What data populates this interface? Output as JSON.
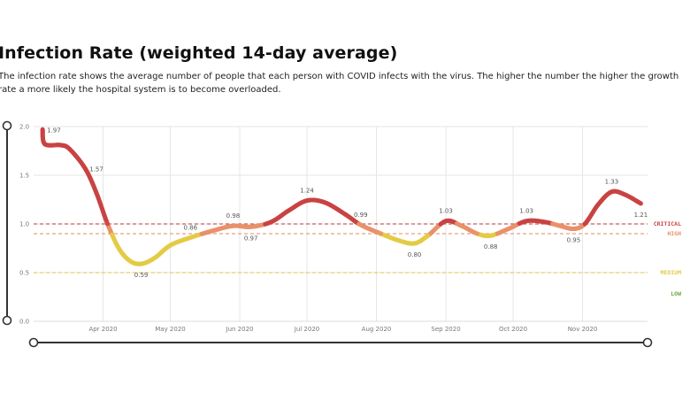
{
  "header": {
    "title": "Infection Rate (weighted 14-day average)",
    "description": "The infection rate shows the average number of people that each person with COVID infects with the virus. The higher the number the higher the growth rate a more likely the hospital system is to become overloaded."
  },
  "colors": {
    "critical": "#c94343",
    "high": "#e8916a",
    "medium": "#e3cb45",
    "low": "#6aaa3a",
    "grid": "#e6e6e6",
    "slider": "#333333"
  },
  "chart_data": {
    "type": "line",
    "title": "",
    "xlabel": "",
    "ylabel": "",
    "ylim": [
      0,
      2.0
    ],
    "x_range": [
      "2020-03-01",
      "2020-11-30"
    ],
    "grid": true,
    "y_ticks": [
      "0.0",
      "0.5",
      "1.0",
      "1.5",
      "2.0"
    ],
    "x_ticks": [
      {
        "date": "2020-04-01",
        "label": "Apr 2020"
      },
      {
        "date": "2020-05-01",
        "label": "May 2020"
      },
      {
        "date": "2020-06-01",
        "label": "Jun 2020"
      },
      {
        "date": "2020-07-01",
        "label": "Jul 2020"
      },
      {
        "date": "2020-08-01",
        "label": "Aug 2020"
      },
      {
        "date": "2020-09-01",
        "label": "Sep 2020"
      },
      {
        "date": "2020-10-01",
        "label": "Oct 2020"
      },
      {
        "date": "2020-11-01",
        "label": "Nov 2020"
      }
    ],
    "series": [
      {
        "points": [
          [
            "2020-03-05",
            1.97
          ],
          [
            "2020-03-06",
            1.82
          ],
          [
            "2020-03-13",
            1.81
          ],
          [
            "2020-03-17",
            1.77
          ],
          [
            "2020-03-24",
            1.57
          ],
          [
            "2020-03-29",
            1.32
          ],
          [
            "2020-04-03",
            1.0
          ],
          [
            "2020-04-08",
            0.75
          ],
          [
            "2020-04-13",
            0.62
          ],
          [
            "2020-04-18",
            0.59
          ],
          [
            "2020-04-24",
            0.65
          ],
          [
            "2020-05-01",
            0.78
          ],
          [
            "2020-05-10",
            0.86
          ],
          [
            "2020-05-20",
            0.93
          ],
          [
            "2020-05-29",
            0.98
          ],
          [
            "2020-06-06",
            0.97
          ],
          [
            "2020-06-15",
            1.02
          ],
          [
            "2020-06-23",
            1.14
          ],
          [
            "2020-07-01",
            1.24
          ],
          [
            "2020-07-09",
            1.22
          ],
          [
            "2020-07-18",
            1.1
          ],
          [
            "2020-07-25",
            0.99
          ],
          [
            "2020-08-03",
            0.9
          ],
          [
            "2020-08-11",
            0.83
          ],
          [
            "2020-08-18",
            0.8
          ],
          [
            "2020-08-24",
            0.88
          ],
          [
            "2020-09-01",
            1.03
          ],
          [
            "2020-09-08",
            0.98
          ],
          [
            "2020-09-15",
            0.9
          ],
          [
            "2020-09-21",
            0.88
          ],
          [
            "2020-09-29",
            0.95
          ],
          [
            "2020-10-07",
            1.03
          ],
          [
            "2020-10-15",
            1.02
          ],
          [
            "2020-10-22",
            0.98
          ],
          [
            "2020-10-28",
            0.95
          ],
          [
            "2020-11-02",
            1.0
          ],
          [
            "2020-11-08",
            1.2
          ],
          [
            "2020-11-14",
            1.33
          ],
          [
            "2020-11-20",
            1.3
          ],
          [
            "2020-11-27",
            1.21
          ]
        ]
      }
    ],
    "data_labels": [
      {
        "date": "2020-03-05",
        "value": 1.97,
        "text": "1.97",
        "pos": "right"
      },
      {
        "date": "2020-03-24",
        "value": 1.57,
        "text": "1.57",
        "pos": "right"
      },
      {
        "date": "2020-04-18",
        "value": 0.59,
        "text": "0.59",
        "pos": "below"
      },
      {
        "date": "2020-05-10",
        "value": 0.86,
        "text": "0.86",
        "pos": "above"
      },
      {
        "date": "2020-05-29",
        "value": 0.98,
        "text": "0.98",
        "pos": "above"
      },
      {
        "date": "2020-06-06",
        "value": 0.97,
        "text": "0.97",
        "pos": "below"
      },
      {
        "date": "2020-07-01",
        "value": 1.24,
        "text": "1.24",
        "pos": "above"
      },
      {
        "date": "2020-07-25",
        "value": 0.99,
        "text": "0.99",
        "pos": "above"
      },
      {
        "date": "2020-08-18",
        "value": 0.8,
        "text": "0.80",
        "pos": "below"
      },
      {
        "date": "2020-09-01",
        "value": 1.03,
        "text": "1.03",
        "pos": "above"
      },
      {
        "date": "2020-09-21",
        "value": 0.88,
        "text": "0.88",
        "pos": "below"
      },
      {
        "date": "2020-10-07",
        "value": 1.03,
        "text": "1.03",
        "pos": "above"
      },
      {
        "date": "2020-10-28",
        "value": 0.95,
        "text": "0.95",
        "pos": "below"
      },
      {
        "date": "2020-11-14",
        "value": 1.33,
        "text": "1.33",
        "pos": "above"
      },
      {
        "date": "2020-11-27",
        "value": 1.21,
        "text": "1.21",
        "pos": "below"
      }
    ],
    "thresholds": [
      {
        "label": "CRITICAL",
        "value": 1.0,
        "color": "#c94343",
        "line": true
      },
      {
        "label": "HIGH",
        "value": 0.9,
        "color": "#e8916a",
        "line": true
      },
      {
        "label": "MEDIUM",
        "value": 0.5,
        "color": "#e3cb45",
        "line": true
      },
      {
        "label": "LOW",
        "value": 0.28,
        "color": "#6aaa3a",
        "line": false
      }
    ]
  }
}
